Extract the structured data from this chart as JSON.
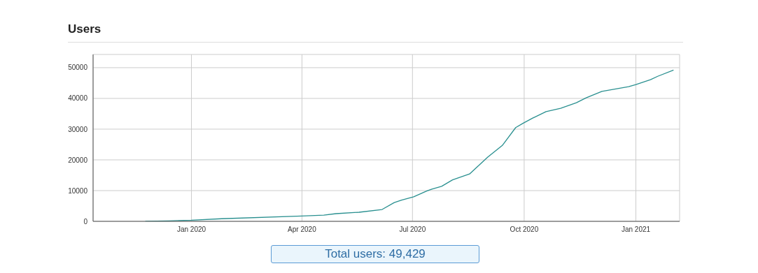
{
  "chart_data": {
    "type": "line",
    "title": "Users",
    "x": [
      "2019-11-24",
      "2019-12-13",
      "2020-01-01",
      "2020-01-26",
      "2020-04-01",
      "2020-04-19",
      "2020-04-29",
      "2020-05-18",
      "2020-06-06",
      "2020-06-16",
      "2020-06-22",
      "2020-07-02",
      "2020-07-13",
      "2020-07-17",
      "2020-07-25",
      "2020-08-03",
      "2020-08-17",
      "2020-09-01",
      "2020-09-13",
      "2020-09-24",
      "2020-09-30",
      "2020-10-08",
      "2020-10-19",
      "2020-10-31",
      "2020-11-13",
      "2020-11-21",
      "2020-12-04",
      "2020-12-26",
      "2021-01-01",
      "2021-01-13",
      "2021-01-19",
      "2021-02-01"
    ],
    "series": [
      {
        "color": "#2a9090",
        "values": [
          0,
          150,
          350,
          850,
          1750,
          2000,
          2500,
          2950,
          3850,
          6100,
          6900,
          8000,
          9900,
          10500,
          11400,
          13500,
          15400,
          20900,
          24700,
          30500,
          31900,
          33600,
          35700,
          36800,
          38600,
          40200,
          42300,
          43800,
          44500,
          46100,
          47200,
          49200
        ]
      }
    ],
    "xlim": [
      "2019-10-12",
      "2021-02-06"
    ],
    "xticks": [
      {
        "value": "2020-01-01",
        "label": "Jan 2020"
      },
      {
        "value": "2020-04-01",
        "label": "Apr 2020"
      },
      {
        "value": "2020-07-01",
        "label": "Jul 2020"
      },
      {
        "value": "2020-10-01",
        "label": "Oct 2020"
      },
      {
        "value": "2021-01-01",
        "label": "Jan 2021"
      }
    ],
    "ylim": [
      0,
      54300
    ],
    "yticks": [
      0,
      10000,
      20000,
      30000,
      40000,
      50000
    ],
    "grid": true,
    "marker": "none",
    "line_style": "solid",
    "annotations": [
      "Total users: 49,429"
    ]
  }
}
